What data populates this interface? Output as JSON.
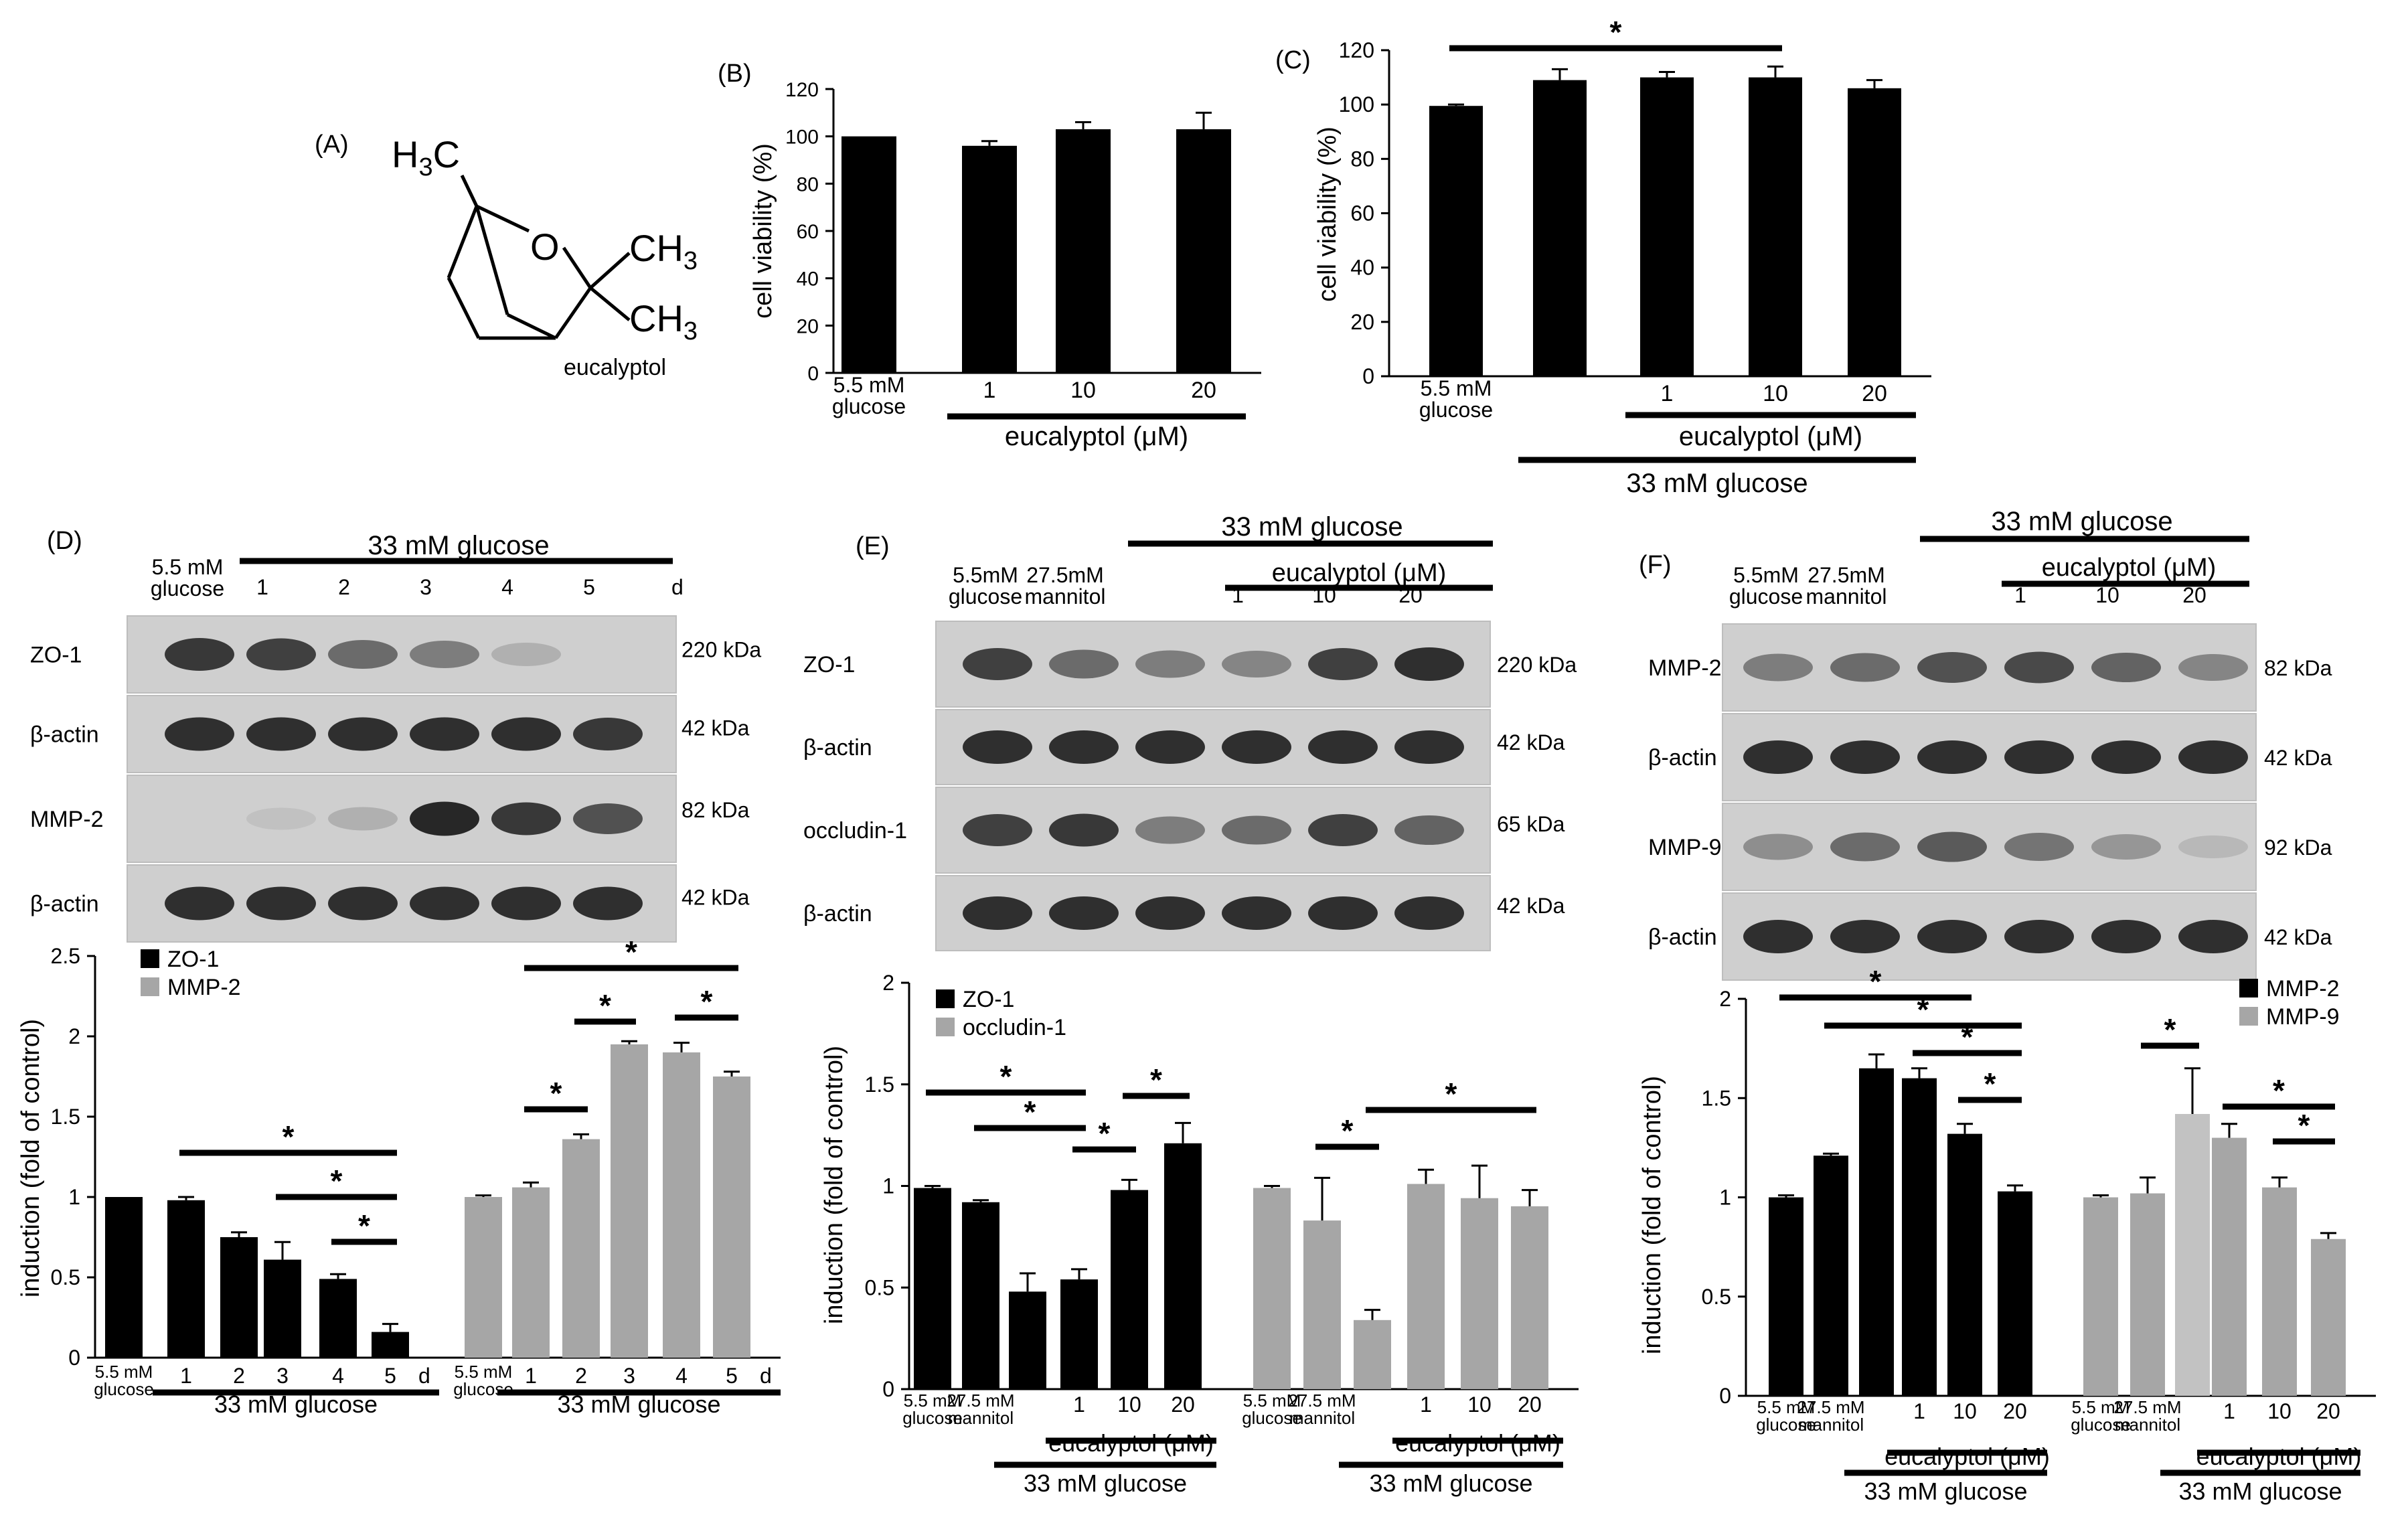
{
  "panel_labels": {
    "a": "(A)",
    "b": "(B)",
    "c": "(C)",
    "d": "(D)",
    "e": "(E)",
    "f": "(F)"
  },
  "molecule": {
    "name": "eucalyptol",
    "o": "O",
    "h3c": "H3C",
    "ch3": "CH3"
  },
  "blots": {
    "d": {
      "header_group": "33 mM glucose",
      "lanes": [
        "5.5 mM\nglucose",
        "1",
        "2",
        "3",
        "4",
        "5"
      ],
      "unit": "d",
      "rows": [
        {
          "name": "ZO-1",
          "kda": "220 kDa"
        },
        {
          "name": "β-actin",
          "kda": "42 kDa"
        },
        {
          "name": "MMP-2",
          "kda": "82 kDa"
        },
        {
          "name": "β-actin",
          "kda": "42 kDa"
        }
      ],
      "band_intensity": [
        [
          0.85,
          0.8,
          0.55,
          0.45,
          0.15,
          0.0
        ],
        [
          0.9,
          0.9,
          0.9,
          0.9,
          0.9,
          0.85
        ],
        [
          0.0,
          0.05,
          0.15,
          0.95,
          0.85,
          0.7
        ],
        [
          0.9,
          0.9,
          0.9,
          0.9,
          0.9,
          0.9
        ]
      ]
    },
    "e": {
      "header_group": "33 mM glucose",
      "sub_group": "eucalyptol (μM)",
      "lanes": [
        "5.5mM\nglucose",
        "27.5mM\nmannitol",
        "",
        "1",
        "10",
        "20"
      ],
      "rows": [
        {
          "name": "ZO-1",
          "kda": "220 kDa"
        },
        {
          "name": "β-actin",
          "kda": "42 kDa"
        },
        {
          "name": "occludin-1",
          "kda": "65 kDa"
        },
        {
          "name": "β-actin",
          "kda": "42 kDa"
        }
      ],
      "band_intensity": [
        [
          0.8,
          0.55,
          0.45,
          0.4,
          0.8,
          0.9
        ],
        [
          0.9,
          0.9,
          0.9,
          0.9,
          0.9,
          0.9
        ],
        [
          0.8,
          0.85,
          0.45,
          0.55,
          0.8,
          0.6
        ],
        [
          0.9,
          0.9,
          0.9,
          0.9,
          0.9,
          0.9
        ]
      ]
    },
    "f": {
      "header_group": "33 mM glucose",
      "sub_group": "eucalyptol (μM)",
      "lanes": [
        "5.5mM\nglucose",
        "27.5mM\nmannitol",
        "",
        "1",
        "10",
        "20"
      ],
      "rows": [
        {
          "name": "MMP-2",
          "kda": "82 kDa"
        },
        {
          "name": "β-actin",
          "kda": "42 kDa"
        },
        {
          "name": "MMP-9",
          "kda": "92 kDa"
        },
        {
          "name": "β-actin",
          "kda": "42 kDa"
        }
      ],
      "band_intensity": [
        [
          0.45,
          0.55,
          0.7,
          0.75,
          0.6,
          0.4
        ],
        [
          0.9,
          0.9,
          0.9,
          0.9,
          0.9,
          0.9
        ],
        [
          0.35,
          0.55,
          0.65,
          0.5,
          0.3,
          0.1
        ],
        [
          0.9,
          0.9,
          0.9,
          0.9,
          0.9,
          0.9
        ]
      ]
    }
  },
  "chart_data": [
    {
      "id": "B",
      "type": "bar",
      "ylabel": "cell viability (%)",
      "ylim": [
        0,
        120
      ],
      "yticks": [
        0,
        20,
        40,
        60,
        80,
        100,
        120
      ],
      "categories": [
        "5.5 mM\nglucose",
        "1",
        "10",
        "20"
      ],
      "group_labels": [
        {
          "text": "eucalyptol (μM)",
          "from": 1,
          "to": 3
        }
      ],
      "values": [
        100,
        96,
        103,
        103
      ],
      "errors": [
        0,
        2,
        3,
        7
      ],
      "colors": [
        "#000000",
        "#000000",
        "#000000",
        "#000000"
      ],
      "significance": []
    },
    {
      "id": "C",
      "type": "bar",
      "ylabel": "cell viability (%)",
      "ylim": [
        0,
        120
      ],
      "yticks": [
        0,
        20,
        40,
        60,
        80,
        100,
        120
      ],
      "categories": [
        "5.5 mM\nglucose",
        "",
        "1",
        "10",
        "20"
      ],
      "group_labels": [
        {
          "text": "eucalyptol (μM)",
          "from": 2,
          "to": 4
        },
        {
          "text": "33 mM glucose",
          "from": 1,
          "to": 4
        }
      ],
      "values": [
        99.5,
        109,
        110,
        110,
        106
      ],
      "errors": [
        0.5,
        4,
        2,
        4,
        3
      ],
      "colors": [
        "#000000",
        "#000000",
        "#000000",
        "#000000",
        "#000000"
      ],
      "significance": [
        {
          "from": 0,
          "to": 3,
          "label": "*"
        }
      ]
    },
    {
      "id": "D",
      "type": "bar",
      "ylabel": "induction (fold of control)",
      "ylim": [
        0,
        2.5
      ],
      "yticks": [
        0,
        0.5,
        1,
        1.5,
        2,
        2.5
      ],
      "legend": [
        {
          "name": "ZO-1",
          "color": "#000000"
        },
        {
          "name": "MMP-2",
          "color": "#a6a6a6"
        }
      ],
      "categories": [
        "5.5 mM\nglucose",
        "1",
        "2",
        "3",
        "4",
        "5",
        "5.5 mM\nglucose",
        "1",
        "2",
        "3",
        "4",
        "5"
      ],
      "unit_label": "d",
      "group_labels": [
        {
          "text": "33 mM  glucose",
          "from": 1,
          "to": 5
        },
        {
          "text": "33 mM  glucose",
          "from": 7,
          "to": 11
        }
      ],
      "values": [
        1.0,
        0.98,
        0.75,
        0.61,
        0.49,
        0.16,
        1.0,
        1.06,
        1.36,
        1.95,
        1.9,
        1.75
      ],
      "errors": [
        0,
        0.02,
        0.03,
        0.11,
        0.03,
        0.05,
        0.01,
        0.03,
        0.03,
        0.02,
        0.06,
        0.03
      ],
      "colors": [
        "#000000",
        "#000000",
        "#000000",
        "#000000",
        "#000000",
        "#000000",
        "#a6a6a6",
        "#a6a6a6",
        "#a6a6a6",
        "#a6a6a6",
        "#a6a6a6",
        "#a6a6a6"
      ],
      "significance": [
        {
          "from": 1,
          "to": 5,
          "label": "*"
        },
        {
          "from": 3,
          "to": 5,
          "label": "*"
        },
        {
          "from": 4,
          "to": 5,
          "label": "*"
        },
        {
          "from": 7,
          "to": 11,
          "label": "*"
        },
        {
          "from": 7,
          "to": 8,
          "label": "*"
        },
        {
          "from": 8,
          "to": 9,
          "label": "*"
        },
        {
          "from": 10,
          "to": 11,
          "label": "*"
        }
      ]
    },
    {
      "id": "E",
      "type": "bar",
      "ylabel": "induction (fold of control)",
      "ylim": [
        0,
        2
      ],
      "yticks": [
        0,
        0.5,
        1,
        1.5,
        2
      ],
      "legend": [
        {
          "name": "ZO-1",
          "color": "#000000"
        },
        {
          "name": "occludin-1",
          "color": "#a6a6a6"
        }
      ],
      "categories": [
        "5.5 mM\nglucose",
        "27.5 mM\nmannitol",
        "",
        "1",
        "10",
        "20",
        "5.5 mM\nglucose",
        "27.5 mM\nmannitol",
        "",
        "1",
        "10",
        "20"
      ],
      "group_labels": [
        {
          "text": "eucalyptol (μM)",
          "from": 3,
          "to": 5
        },
        {
          "text": "33 mM  glucose",
          "from": 2,
          "to": 5
        },
        {
          "text": "eucalyptol (μM)",
          "from": 9,
          "to": 11
        },
        {
          "text": "33 mM  glucose",
          "from": 8,
          "to": 11
        }
      ],
      "values": [
        0.99,
        0.92,
        0.48,
        0.54,
        0.98,
        1.21,
        0.99,
        0.83,
        0.34,
        1.01,
        0.94,
        0.9
      ],
      "errors": [
        0.01,
        0.01,
        0.09,
        0.05,
        0.05,
        0.1,
        0.01,
        0.21,
        0.05,
        0.07,
        0.16,
        0.08
      ],
      "colors": [
        "#000000",
        "#000000",
        "#000000",
        "#000000",
        "#000000",
        "#000000",
        "#a6a6a6",
        "#a6a6a6",
        "#a6a6a6",
        "#a6a6a6",
        "#a6a6a6",
        "#a6a6a6"
      ],
      "significance": [
        {
          "from": 0,
          "to": 3,
          "label": "*"
        },
        {
          "from": 1,
          "to": 3,
          "label": "*"
        },
        {
          "from": 3,
          "to": 4,
          "label": "*"
        },
        {
          "from": 4,
          "to": 5,
          "label": "*"
        },
        {
          "from": 7,
          "to": 8,
          "label": "*"
        },
        {
          "from": 8,
          "to": 11,
          "label": "*"
        }
      ]
    },
    {
      "id": "F",
      "type": "bar",
      "ylabel": "induction (fold of control)",
      "ylim": [
        0,
        2
      ],
      "yticks": [
        0,
        0.5,
        1,
        1.5,
        2
      ],
      "legend": [
        {
          "name": "MMP-2",
          "color": "#000000"
        },
        {
          "name": "MMP-9",
          "color": "#a6a6a6"
        }
      ],
      "categories": [
        "5.5 mM\nglucose",
        "27.5 mM\nmannitol",
        "",
        "1",
        "10",
        "20",
        "5.5 mM\nglucose",
        "27.5 mM\nmannitol",
        "",
        "1",
        "10",
        "20"
      ],
      "group_labels": [
        {
          "text": "eucalyptol (μM)",
          "from": 3,
          "to": 5
        },
        {
          "text": "33 mM  glucose",
          "from": 2,
          "to": 5
        },
        {
          "text": "eucalyptol (μM)",
          "from": 9,
          "to": 11
        },
        {
          "text": "33 mM  glucose",
          "from": 8,
          "to": 11
        }
      ],
      "values": [
        1.0,
        1.21,
        1.65,
        1.6,
        1.32,
        1.03,
        1.0,
        1.02,
        1.42,
        1.3,
        1.05,
        0.79
      ],
      "errors": [
        0.01,
        0.01,
        0.07,
        0.05,
        0.05,
        0.03,
        0.01,
        0.08,
        0.23,
        0.07,
        0.05,
        0.03
      ],
      "colors": [
        "#000000",
        "#000000",
        "#000000",
        "#000000",
        "#000000",
        "#000000",
        "#a6a6a6",
        "#a6a6a6",
        "#c2c2c2",
        "#a6a6a6",
        "#a6a6a6",
        "#a6a6a6"
      ],
      "significance": [
        {
          "from": 0,
          "to": 4,
          "label": "*"
        },
        {
          "from": 1,
          "to": 5,
          "label": "*"
        },
        {
          "from": 3,
          "to": 5,
          "label": "*"
        },
        {
          "from": 4,
          "to": 5,
          "label": "*"
        },
        {
          "from": 7,
          "to": 8,
          "label": "*"
        },
        {
          "from": 9,
          "to": 11,
          "label": "*"
        },
        {
          "from": 10,
          "to": 11,
          "label": "*"
        }
      ]
    }
  ]
}
